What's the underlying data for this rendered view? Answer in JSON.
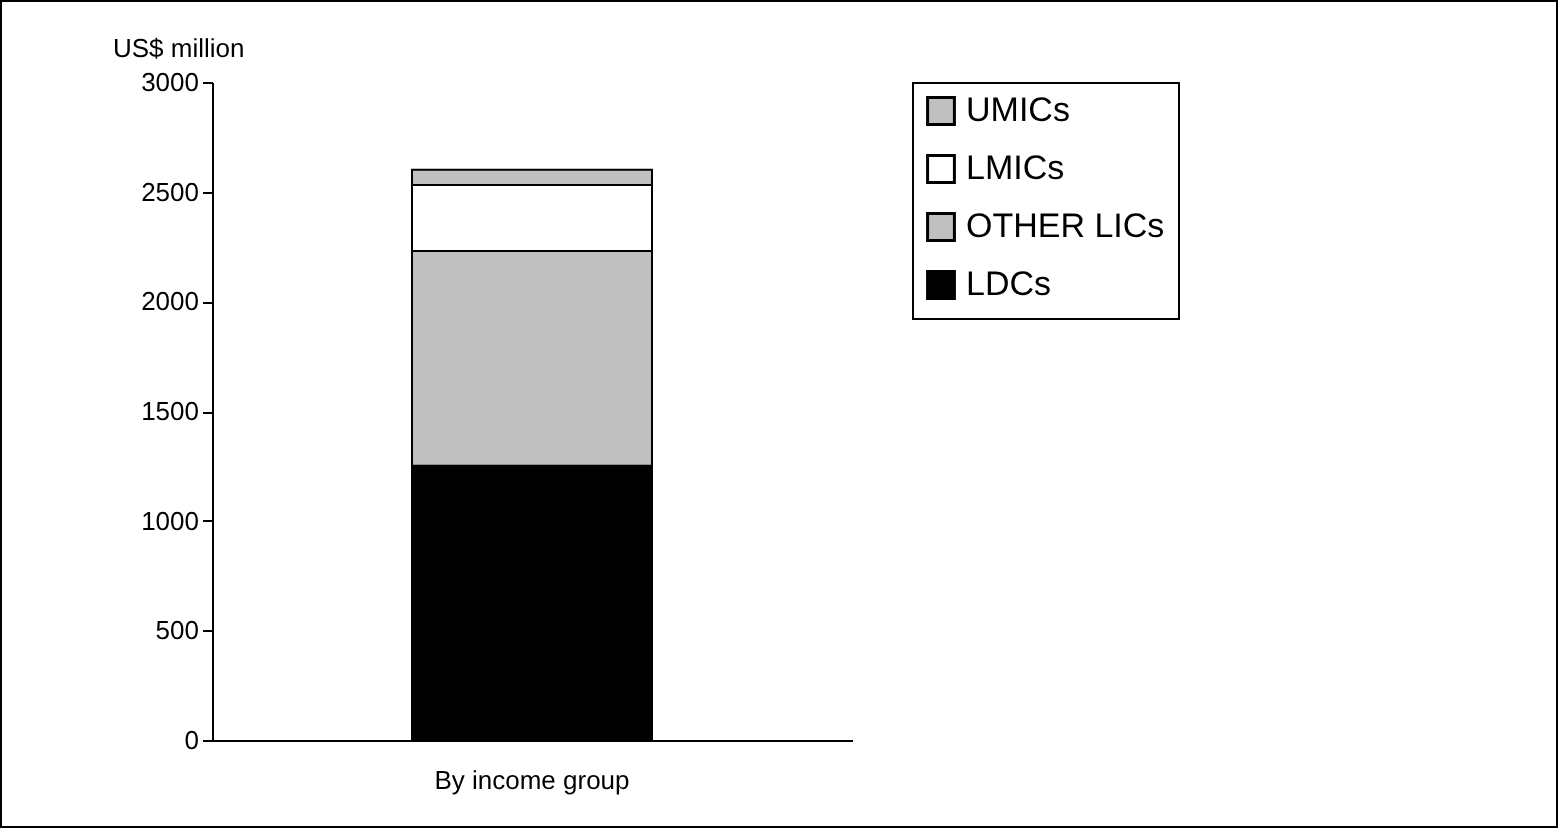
{
  "chart_data": {
    "type": "bar",
    "stacked": true,
    "ylabel": "US$ million",
    "categories": [
      "By income group"
    ],
    "series": [
      {
        "name": "LDCs",
        "color": "#000000",
        "values": [
          1250
        ]
      },
      {
        "name": "OTHER LICs",
        "color": "#c0c0c0",
        "values": [
          980
        ]
      },
      {
        "name": "LMICs",
        "color": "#ffffff",
        "values": [
          300
        ]
      },
      {
        "name": "UMICs",
        "color": "#c0c0c0",
        "values": [
          70
        ]
      }
    ],
    "ylim": [
      0,
      3000
    ],
    "yticks": [
      0,
      500,
      1000,
      1500,
      2000,
      2500,
      3000
    ],
    "grid": false,
    "legend": "right"
  }
}
